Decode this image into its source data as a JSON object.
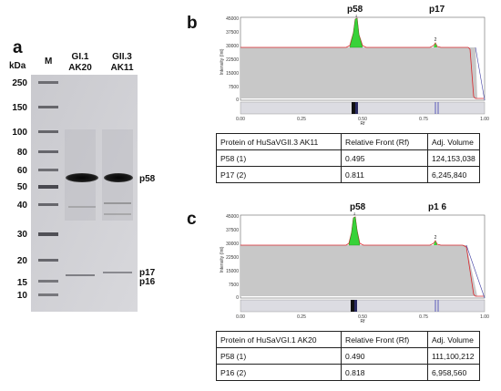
{
  "panel_a": {
    "letter": "a",
    "unit_label": "kDa",
    "marker_lane_label": "M",
    "lanes": [
      {
        "line1": "GI.1",
        "line2": "AK20"
      },
      {
        "line1": "GII.3",
        "line2": "AK11"
      }
    ],
    "ladder": [
      "250",
      "150",
      "100",
      "80",
      "60",
      "50",
      "40",
      "30",
      "20",
      "15",
      "10"
    ],
    "band_labels": {
      "p58": "p58",
      "p17": "p17",
      "p16": "p16"
    }
  },
  "panel_b": {
    "letter": "b",
    "peak_labels": [
      "p58",
      "p17"
    ],
    "peak_numbers": [
      "1",
      "2"
    ],
    "y_axis_label": "Intensity (Int)",
    "y_ticks": [
      "45000",
      "37500",
      "30000",
      "22500",
      "15000",
      "7500",
      "0"
    ],
    "x_ticks": [
      "0.00",
      "0.25",
      "0.50",
      "0.75",
      "1.00"
    ],
    "x_axis_label": "Rf",
    "table": {
      "header": [
        "Protein of HuSaVGII.3 AK11",
        "Relative Front (Rf)",
        "Adj. Volume"
      ],
      "rows": [
        [
          "P58 (1)",
          "0.495",
          "124,153,038"
        ],
        [
          "P17 (2)",
          "0.811",
          "6,245,840"
        ]
      ]
    }
  },
  "panel_c": {
    "letter": "c",
    "peak_labels": [
      "p58",
      "p1 6"
    ],
    "peak_numbers": [
      "1",
      "2"
    ],
    "y_axis_label": "Intensity (Int)",
    "y_ticks": [
      "45000",
      "37500",
      "30000",
      "22500",
      "15000",
      "7500",
      "0"
    ],
    "x_ticks": [
      "0.00",
      "0.25",
      "0.50",
      "0.75",
      "1.00"
    ],
    "x_axis_label": "Rf",
    "table": {
      "header": [
        "Protein of HuSaVGI.1 AK20",
        "Relative Front (Rf)",
        "Adj. Volume"
      ],
      "rows": [
        [
          "P58 (1)",
          "0.490",
          "111,100,212"
        ],
        [
          "P16 (2)",
          "0.818",
          "6,958,560"
        ]
      ]
    }
  },
  "chart_data": [
    {
      "type": "line",
      "xlabel": "Rf",
      "ylabel": "Intensity (Int)",
      "xlim": [
        0,
        1
      ],
      "ylim": [
        0,
        45000
      ],
      "peaks": [
        {
          "name": "p58",
          "rf": 0.495,
          "intensity": 45000
        },
        {
          "name": "p17",
          "rf": 0.811,
          "intensity": 31500
        }
      ]
    },
    {
      "type": "line",
      "xlabel": "Rf",
      "ylabel": "Intensity (Int)",
      "xlim": [
        0,
        1
      ],
      "ylim": [
        0,
        45000
      ],
      "peaks": [
        {
          "name": "p58",
          "rf": 0.49,
          "intensity": 44500
        },
        {
          "name": "p1 6",
          "rf": 0.818,
          "intensity": 32000
        }
      ]
    }
  ]
}
